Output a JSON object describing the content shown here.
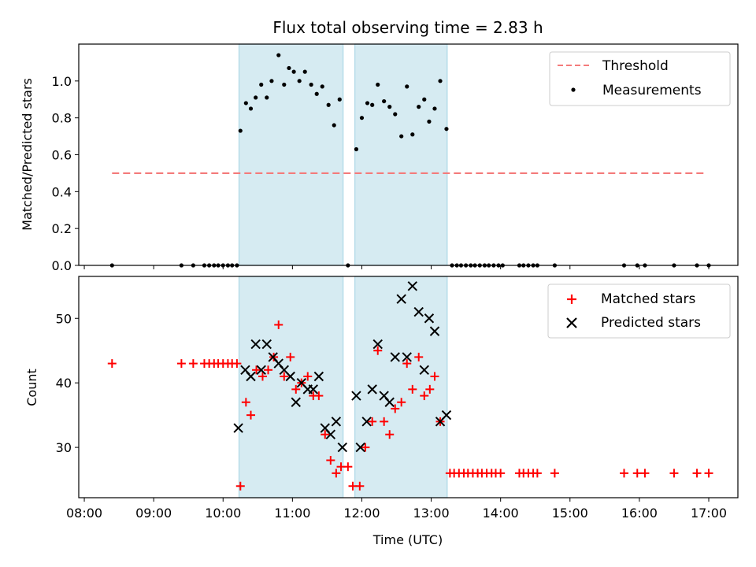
{
  "chart_data": {
    "title": "Flux total observing time = 2.83 h",
    "xlabel": "Time (UTC)",
    "x_ticks": [
      "08:00",
      "09:00",
      "10:00",
      "11:00",
      "12:00",
      "13:00",
      "14:00",
      "15:00",
      "16:00",
      "17:00"
    ],
    "x_range_hours": [
      7.92,
      17.42
    ],
    "colors": {
      "threshold": "#f47b7b",
      "measurements": "#000000",
      "matched": "#ff0000",
      "predicted": "#000000",
      "shade": "#add8e6"
    },
    "observing_windows": [
      [
        10.23,
        11.73
      ],
      [
        11.9,
        13.23
      ]
    ],
    "panels": [
      {
        "type": "scatter",
        "ylabel": "Matched/Predicted stars",
        "ylim": [
          0,
          1.2
        ],
        "y_ticks": [
          "0.0",
          "0.2",
          "0.4",
          "0.6",
          "0.8",
          "1.0"
        ],
        "y_tick_values": [
          0,
          0.2,
          0.4,
          0.6,
          0.8,
          1.0
        ],
        "legend": {
          "position": "upper right",
          "threshold_label": "Threshold",
          "measurements_label": "Measurements"
        },
        "threshold": {
          "value": 0.5,
          "x": [
            8.4,
            16.97
          ]
        },
        "measurements": [
          [
            8.4,
            0
          ],
          [
            9.4,
            0
          ],
          [
            9.57,
            0
          ],
          [
            9.73,
            0
          ],
          [
            9.8,
            0
          ],
          [
            9.87,
            0
          ],
          [
            9.93,
            0
          ],
          [
            10.0,
            0
          ],
          [
            10.07,
            0
          ],
          [
            10.13,
            0
          ],
          [
            10.2,
            0
          ],
          [
            10.25,
            0.73
          ],
          [
            10.33,
            0.88
          ],
          [
            10.4,
            0.85
          ],
          [
            10.47,
            0.91
          ],
          [
            10.55,
            0.98
          ],
          [
            10.63,
            0.91
          ],
          [
            10.7,
            1.0
          ],
          [
            10.8,
            1.14
          ],
          [
            10.88,
            0.98
          ],
          [
            10.95,
            1.07
          ],
          [
            11.02,
            1.05
          ],
          [
            11.1,
            1.0
          ],
          [
            11.18,
            1.05
          ],
          [
            11.27,
            0.98
          ],
          [
            11.35,
            0.93
          ],
          [
            11.43,
            0.97
          ],
          [
            11.52,
            0.87
          ],
          [
            11.6,
            0.76
          ],
          [
            11.68,
            0.9
          ],
          [
            11.8,
            0
          ],
          [
            11.92,
            0.63
          ],
          [
            12.0,
            0.8
          ],
          [
            12.08,
            0.88
          ],
          [
            12.15,
            0.87
          ],
          [
            12.23,
            0.98
          ],
          [
            12.32,
            0.89
          ],
          [
            12.4,
            0.86
          ],
          [
            12.48,
            0.82
          ],
          [
            12.57,
            0.7
          ],
          [
            12.65,
            0.97
          ],
          [
            12.73,
            0.71
          ],
          [
            12.82,
            0.86
          ],
          [
            12.9,
            0.9
          ],
          [
            12.97,
            0.78
          ],
          [
            13.05,
            0.85
          ],
          [
            13.13,
            1.0
          ],
          [
            13.22,
            0.74
          ],
          [
            13.3,
            0
          ],
          [
            13.37,
            0
          ],
          [
            13.43,
            0
          ],
          [
            13.5,
            0
          ],
          [
            13.57,
            0
          ],
          [
            13.63,
            0
          ],
          [
            13.7,
            0
          ],
          [
            13.77,
            0
          ],
          [
            13.83,
            0
          ],
          [
            13.9,
            0
          ],
          [
            13.97,
            0
          ],
          [
            14.03,
            0
          ],
          [
            14.27,
            0
          ],
          [
            14.33,
            0
          ],
          [
            14.4,
            0
          ],
          [
            14.47,
            0
          ],
          [
            14.53,
            0
          ],
          [
            14.78,
            0
          ],
          [
            15.78,
            0
          ],
          [
            15.97,
            0
          ],
          [
            16.08,
            0
          ],
          [
            16.5,
            0
          ],
          [
            16.83,
            0
          ],
          [
            17.0,
            0
          ]
        ]
      },
      {
        "type": "scatter",
        "ylabel": "Count",
        "ylim": [
          22.2,
          56.5
        ],
        "y_ticks": [
          "30",
          "40",
          "50"
        ],
        "y_tick_values": [
          30,
          40,
          50
        ],
        "legend": {
          "position": "upper right",
          "matched_label": "Matched stars",
          "predicted_label": "Predicted stars"
        },
        "matched": [
          [
            8.4,
            43
          ],
          [
            9.4,
            43
          ],
          [
            9.57,
            43
          ],
          [
            9.73,
            43
          ],
          [
            9.8,
            43
          ],
          [
            9.87,
            43
          ],
          [
            9.93,
            43
          ],
          [
            10.0,
            43
          ],
          [
            10.07,
            43
          ],
          [
            10.13,
            43
          ],
          [
            10.2,
            43
          ],
          [
            10.25,
            24
          ],
          [
            10.33,
            37
          ],
          [
            10.4,
            35
          ],
          [
            10.48,
            42
          ],
          [
            10.57,
            41
          ],
          [
            10.65,
            42
          ],
          [
            10.73,
            44
          ],
          [
            10.8,
            49
          ],
          [
            10.88,
            41
          ],
          [
            10.97,
            44
          ],
          [
            11.05,
            39
          ],
          [
            11.13,
            40
          ],
          [
            11.22,
            41
          ],
          [
            11.3,
            38
          ],
          [
            11.38,
            38
          ],
          [
            11.47,
            32
          ],
          [
            11.55,
            28
          ],
          [
            11.63,
            26
          ],
          [
            11.7,
            27
          ],
          [
            11.8,
            27
          ],
          [
            11.87,
            24
          ],
          [
            11.97,
            24
          ],
          [
            12.05,
            30
          ],
          [
            12.15,
            34
          ],
          [
            12.23,
            45
          ],
          [
            12.32,
            34
          ],
          [
            12.4,
            32
          ],
          [
            12.48,
            36
          ],
          [
            12.57,
            37
          ],
          [
            12.65,
            43
          ],
          [
            12.73,
            39
          ],
          [
            12.82,
            44
          ],
          [
            12.9,
            38
          ],
          [
            12.98,
            39
          ],
          [
            13.05,
            41
          ],
          [
            13.13,
            34
          ],
          [
            13.27,
            26
          ],
          [
            13.33,
            26
          ],
          [
            13.4,
            26
          ],
          [
            13.47,
            26
          ],
          [
            13.53,
            26
          ],
          [
            13.6,
            26
          ],
          [
            13.67,
            26
          ],
          [
            13.73,
            26
          ],
          [
            13.8,
            26
          ],
          [
            13.87,
            26
          ],
          [
            13.93,
            26
          ],
          [
            14.0,
            26
          ],
          [
            14.27,
            26
          ],
          [
            14.33,
            26
          ],
          [
            14.4,
            26
          ],
          [
            14.47,
            26
          ],
          [
            14.53,
            26
          ],
          [
            14.78,
            26
          ],
          [
            15.78,
            26
          ],
          [
            15.97,
            26
          ],
          [
            16.08,
            26
          ],
          [
            16.5,
            26
          ],
          [
            16.83,
            26
          ],
          [
            17.0,
            26
          ]
        ],
        "predicted": [
          [
            10.22,
            33
          ],
          [
            10.32,
            42
          ],
          [
            10.4,
            41
          ],
          [
            10.47,
            46
          ],
          [
            10.55,
            42
          ],
          [
            10.63,
            46
          ],
          [
            10.72,
            44
          ],
          [
            10.8,
            43
          ],
          [
            10.88,
            42
          ],
          [
            10.97,
            41
          ],
          [
            11.05,
            37
          ],
          [
            11.13,
            40
          ],
          [
            11.22,
            39
          ],
          [
            11.3,
            39
          ],
          [
            11.38,
            41
          ],
          [
            11.47,
            33
          ],
          [
            11.55,
            32
          ],
          [
            11.63,
            34
          ],
          [
            11.72,
            30
          ],
          [
            11.92,
            38
          ],
          [
            11.98,
            30
          ],
          [
            12.07,
            34
          ],
          [
            12.15,
            39
          ],
          [
            12.23,
            46
          ],
          [
            12.32,
            38
          ],
          [
            12.4,
            37
          ],
          [
            12.48,
            44
          ],
          [
            12.57,
            53
          ],
          [
            12.65,
            44
          ],
          [
            12.73,
            55
          ],
          [
            12.82,
            51
          ],
          [
            12.9,
            42
          ],
          [
            12.97,
            50
          ],
          [
            13.05,
            48
          ],
          [
            13.13,
            34
          ],
          [
            13.22,
            35
          ]
        ]
      }
    ]
  }
}
